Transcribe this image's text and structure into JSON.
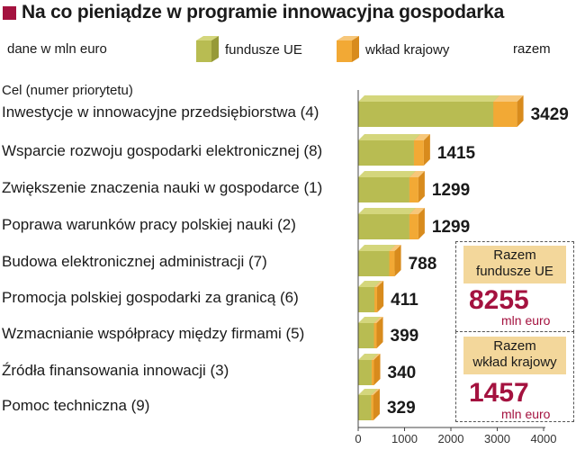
{
  "title": "Na co pieniądze w programie innowacyjna gospodarka",
  "unit_label": "dane w mln euro",
  "legend": {
    "eu_label": "fundusze UE",
    "national_label": "wkład krajowy",
    "total_label": "razem"
  },
  "category_header": "Cel (numer priorytetu)",
  "colors": {
    "eu_front": "#b8bc52",
    "eu_top": "#d4d67c",
    "eu_side": "#979a38",
    "nat_front": "#f2a935",
    "nat_top": "#f7c77a",
    "nat_side": "#d88b1d",
    "accent": "#a4123f",
    "axis": "#444444"
  },
  "totals": {
    "eu_title_line1": "Razem",
    "eu_title_line2": "fundusze UE",
    "eu_value": "8255",
    "eu_unit": "mln euro",
    "nat_title_line1": "Razem",
    "nat_title_line2": "wkład krajowy",
    "nat_value": "1457",
    "nat_unit": "mln euro"
  },
  "chart_data": {
    "type": "bar",
    "orientation": "horizontal",
    "stacked": true,
    "title": "Na co pieniądze w programie innowacyjna gospodarka",
    "xlim": [
      0,
      4000
    ],
    "xticks": [
      "0",
      "1000",
      "2000",
      "3000",
      "4000"
    ],
    "categories": [
      "Inwestycje w innowacyjne przedsiębiorstwa (4)",
      "Wsparcie rozwoju gospodarki elektronicznej (8)",
      "Zwiększenie znaczenia nauki w gospodarce (1)",
      "Poprawa warunków pracy polskiej nauki (2)",
      "Budowa elektronicznej administracji (7)",
      "Promocja polskiej gospodarki za granicą (6)",
      "Wzmacnianie współpracy między firmami (5)",
      "Źródła finansowania innowacji (3)",
      "Pomoc techniczna (9)"
    ],
    "series": [
      {
        "name": "fundusze UE",
        "values": [
          2915,
          1203,
          1104,
          1104,
          670,
          350,
          340,
          290,
          280
        ]
      },
      {
        "name": "wkład krajowy",
        "values": [
          514,
          212,
          195,
          195,
          118,
          61,
          59,
          50,
          49
        ]
      }
    ],
    "totals": [
      "3429",
      "1415",
      "1299",
      "1299",
      "788",
      "411",
      "399",
      "340",
      "329"
    ],
    "legend_position": "top",
    "grid": false
  }
}
